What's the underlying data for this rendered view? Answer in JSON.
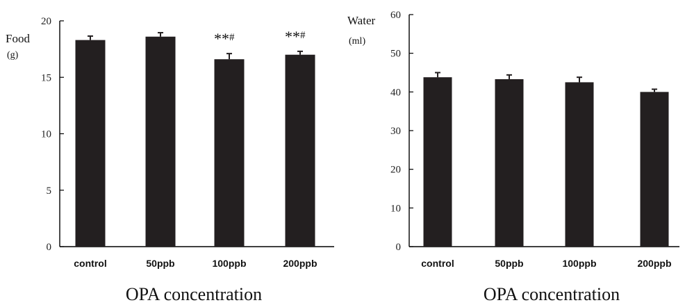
{
  "chart_data": [
    {
      "type": "bar",
      "categories": [
        "control",
        "50ppb",
        "100ppb",
        "200ppb"
      ],
      "values": [
        18.3,
        18.6,
        16.6,
        17.0
      ],
      "errors": [
        0.35,
        0.35,
        0.5,
        0.3
      ],
      "annotations": [
        {
          "category": "100ppb",
          "stars": "**",
          "mark": "#"
        },
        {
          "category": "200ppb",
          "stars": "**",
          "mark": "#"
        }
      ],
      "ylabel": "Food",
      "yunit": "(g)",
      "xlabel": "OPA concentration",
      "ylim": [
        0,
        20
      ],
      "yticks": [
        0,
        5,
        10,
        15,
        20
      ],
      "bar_color": "#231f20"
    },
    {
      "type": "bar",
      "categories": [
        "control",
        "50ppb",
        "100ppb",
        "200ppb"
      ],
      "values": [
        43.8,
        43.3,
        42.5,
        40.0
      ],
      "errors": [
        1.2,
        1.1,
        1.3,
        0.7
      ],
      "annotations": [],
      "ylabel": "Water",
      "yunit": "(ml)",
      "xlabel": "OPA concentration",
      "ylim": [
        0,
        60
      ],
      "yticks": [
        0,
        10,
        20,
        30,
        40,
        50,
        60
      ],
      "bar_color": "#231f20"
    }
  ]
}
